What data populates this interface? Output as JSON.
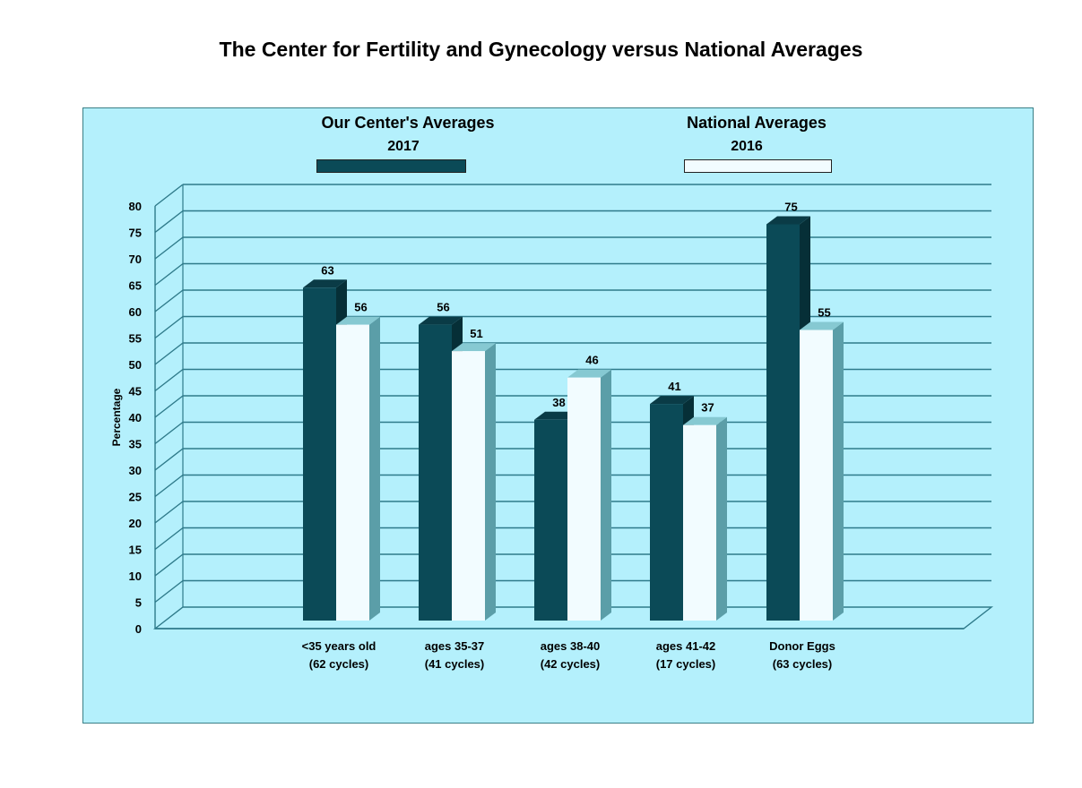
{
  "chart_data": {
    "type": "bar",
    "title": "The Center for Fertility and Gynecology versus National Averages",
    "xlabel": "",
    "ylabel": "Percentage",
    "ylim": [
      0,
      80
    ],
    "ytick_step": 5,
    "grid": true,
    "legend_position": "top",
    "categories": [
      [
        "<35 years old",
        "(62 cycles)"
      ],
      [
        "ages 35-37",
        "(41 cycles)"
      ],
      [
        "ages 38-40",
        "(42 cycles)"
      ],
      [
        "ages 41-42",
        "(17 cycles)"
      ],
      [
        "Donor Eggs",
        "(63 cycles)"
      ]
    ],
    "series": [
      {
        "name": "Our Center's Averages",
        "year": "2017",
        "color": "#0b4a57",
        "values": [
          63,
          56,
          38,
          41,
          75
        ]
      },
      {
        "name": "National  Averages",
        "year": "2016",
        "color": "#f2fcff",
        "values": [
          56,
          51,
          46,
          37,
          55
        ]
      }
    ]
  },
  "colors": {
    "panel_background": "#b4f0fc",
    "gridline": "#2e7a8a",
    "dark_side": "#062f37",
    "dark_top": "#0a3b46",
    "light_side": "#5b9ea8",
    "light_top": "#86c9d2"
  }
}
